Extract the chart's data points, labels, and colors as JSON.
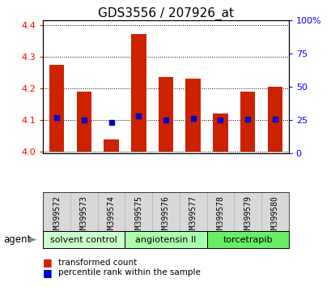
{
  "title": "GDS3556 / 207926_at",
  "samples": [
    "GSM399572",
    "GSM399573",
    "GSM399574",
    "GSM399575",
    "GSM399576",
    "GSM399577",
    "GSM399578",
    "GSM399579",
    "GSM399580"
  ],
  "bar_values": [
    4.275,
    4.19,
    4.04,
    4.37,
    4.235,
    4.23,
    4.12,
    4.19,
    4.205
  ],
  "bar_base": 4.0,
  "blue_values": [
    4.107,
    4.101,
    4.092,
    4.114,
    4.101,
    4.106,
    4.101,
    4.102,
    4.102
  ],
  "ylim_left": [
    3.995,
    4.415
  ],
  "yticks_left": [
    4.0,
    4.1,
    4.2,
    4.3,
    4.4
  ],
  "yticks_right": [
    0,
    25,
    50,
    75,
    100
  ],
  "bar_color": "#cc2200",
  "blue_color": "#0000cc",
  "groups": [
    {
      "label": "solvent control",
      "start": 0,
      "end": 3,
      "color": "#ccffcc"
    },
    {
      "label": "angiotensin II",
      "start": 3,
      "end": 6,
      "color": "#aaffaa"
    },
    {
      "label": "torcetrapib",
      "start": 6,
      "end": 9,
      "color": "#66ee66"
    }
  ],
  "agent_label": "agent",
  "legend_red": "transformed count",
  "legend_blue": "percentile rank within the sample",
  "title_fontsize": 11,
  "tick_fontsize": 8,
  "sample_fontsize": 7,
  "group_fontsize": 8,
  "legend_fontsize": 7.5
}
